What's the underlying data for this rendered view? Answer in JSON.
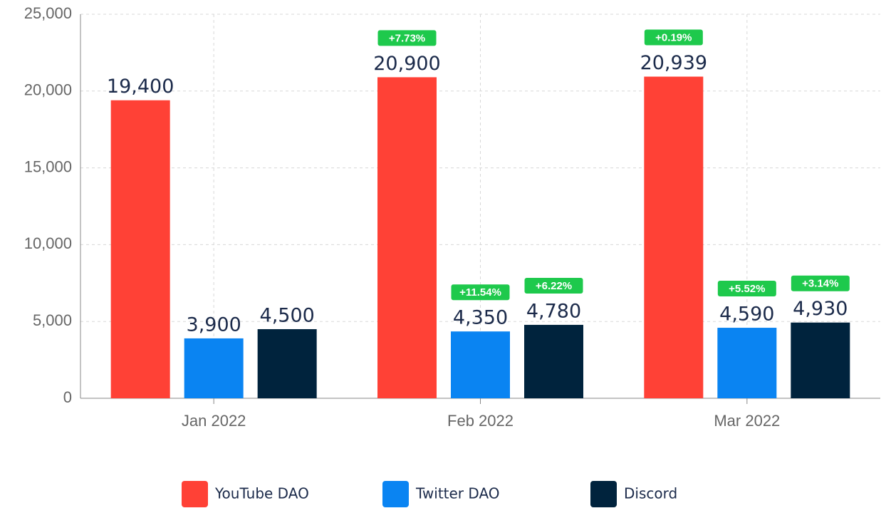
{
  "chart_data": {
    "type": "bar",
    "categories": [
      "Jan 2022",
      "Feb 2022",
      "Mar 2022"
    ],
    "series": [
      {
        "name": "YouTube DAO",
        "color": "#ff4136",
        "values": [
          19400,
          20900,
          20939
        ],
        "value_labels": [
          "19,400",
          "20,900",
          "20,939"
        ],
        "change_labels": [
          null,
          "+7.73%",
          "+0.19%"
        ]
      },
      {
        "name": "Twitter DAO",
        "color": "#0a84f2",
        "values": [
          3900,
          4350,
          4590
        ],
        "value_labels": [
          "3,900",
          "4,350",
          "4,590"
        ],
        "change_labels": [
          null,
          "+11.54%",
          "+5.52%"
        ]
      },
      {
        "name": "Discord",
        "color": "#00233d",
        "values": [
          4500,
          4780,
          4930
        ],
        "value_labels": [
          "4,500",
          "4,780",
          "4,930"
        ],
        "change_labels": [
          null,
          "+6.22%",
          "+3.14%"
        ]
      }
    ],
    "badge_color": "#1ec94c",
    "ylim": [
      0,
      25000
    ],
    "yticks": [
      0,
      {
        "value": 5000,
        "label": "5,000"
      },
      {
        "value": 10000,
        "label": "10,000"
      },
      {
        "value": 15000,
        "label": "15,000"
      },
      {
        "value": 20000,
        "label": "20,000"
      },
      {
        "value": 25000,
        "label": "25,000"
      }
    ],
    "grid": true,
    "legend": "bottom"
  }
}
